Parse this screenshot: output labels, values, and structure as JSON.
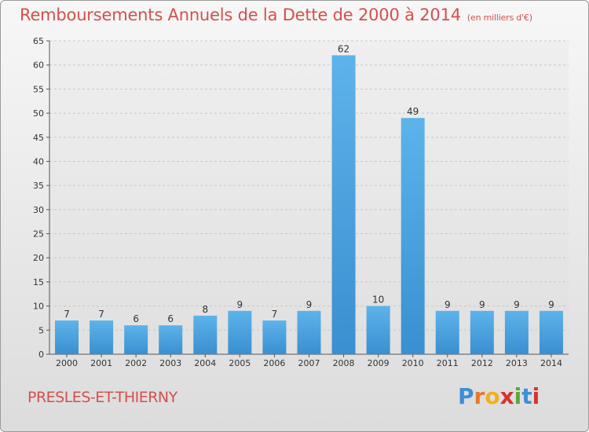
{
  "chart_data": {
    "type": "bar",
    "title": "Remboursements Annuels de la Dette de 2000 à 2014",
    "unit_note": "(en milliers d'€)",
    "categories": [
      "2000",
      "2001",
      "2002",
      "2003",
      "2004",
      "2005",
      "2006",
      "2007",
      "2008",
      "2009",
      "2010",
      "2011",
      "2012",
      "2013",
      "2014"
    ],
    "values": [
      7,
      7,
      6,
      6,
      8,
      9,
      7,
      9,
      62,
      10,
      49,
      9,
      9,
      9,
      9
    ],
    "data_labels": [
      "7",
      "7",
      "6",
      "6",
      "8",
      "9",
      "7",
      "9",
      "62",
      "10",
      "49",
      "9",
      "9",
      "9",
      "9"
    ],
    "ylim": [
      0,
      65
    ],
    "yticks": [
      0,
      5,
      10,
      15,
      20,
      25,
      30,
      35,
      40,
      45,
      50,
      55,
      60,
      65
    ],
    "grid": true,
    "bar_color": "#3a8fd0"
  },
  "footer": {
    "commune": "PRESLES-ET-THIERNY",
    "logo_letters": [
      "P",
      "r",
      "o",
      "x",
      "i",
      "t",
      "i"
    ],
    "logo_colors": [
      "#3d8fd6",
      "#e6792a",
      "#f2b01e",
      "#d6342e",
      "#5aa83a",
      "#3d8fd6",
      "#d6342e"
    ]
  }
}
